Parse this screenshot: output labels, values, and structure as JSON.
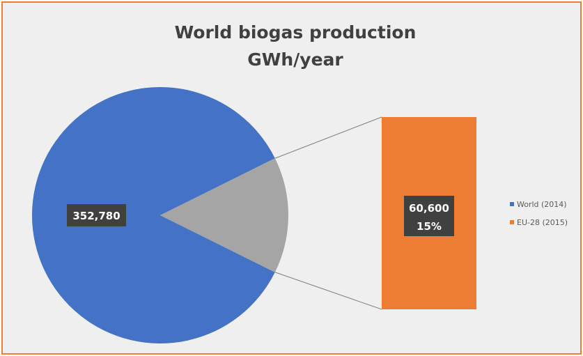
{
  "chart_data": {
    "type": "bar-of-pie",
    "title": "World biogas production",
    "subtitle": "GWh/year",
    "slices": [
      {
        "name": "World (2014)",
        "value": 352780,
        "label": "352,780",
        "color": "#4472C4"
      },
      {
        "name": "EU-28 (2015)",
        "value": 60600,
        "label": "60,600",
        "percent_label": "15%",
        "color": "#ED7D31"
      }
    ],
    "pie_split_color": "#A5A5A5",
    "legend": {
      "position": "right",
      "entries": [
        {
          "label": "World (2014)",
          "color": "#4472C4"
        },
        {
          "label": "EU-28 (2015)",
          "color": "#ED7D31"
        }
      ]
    },
    "frame_color": "#ED7D31",
    "background": "#EFEFEF"
  }
}
